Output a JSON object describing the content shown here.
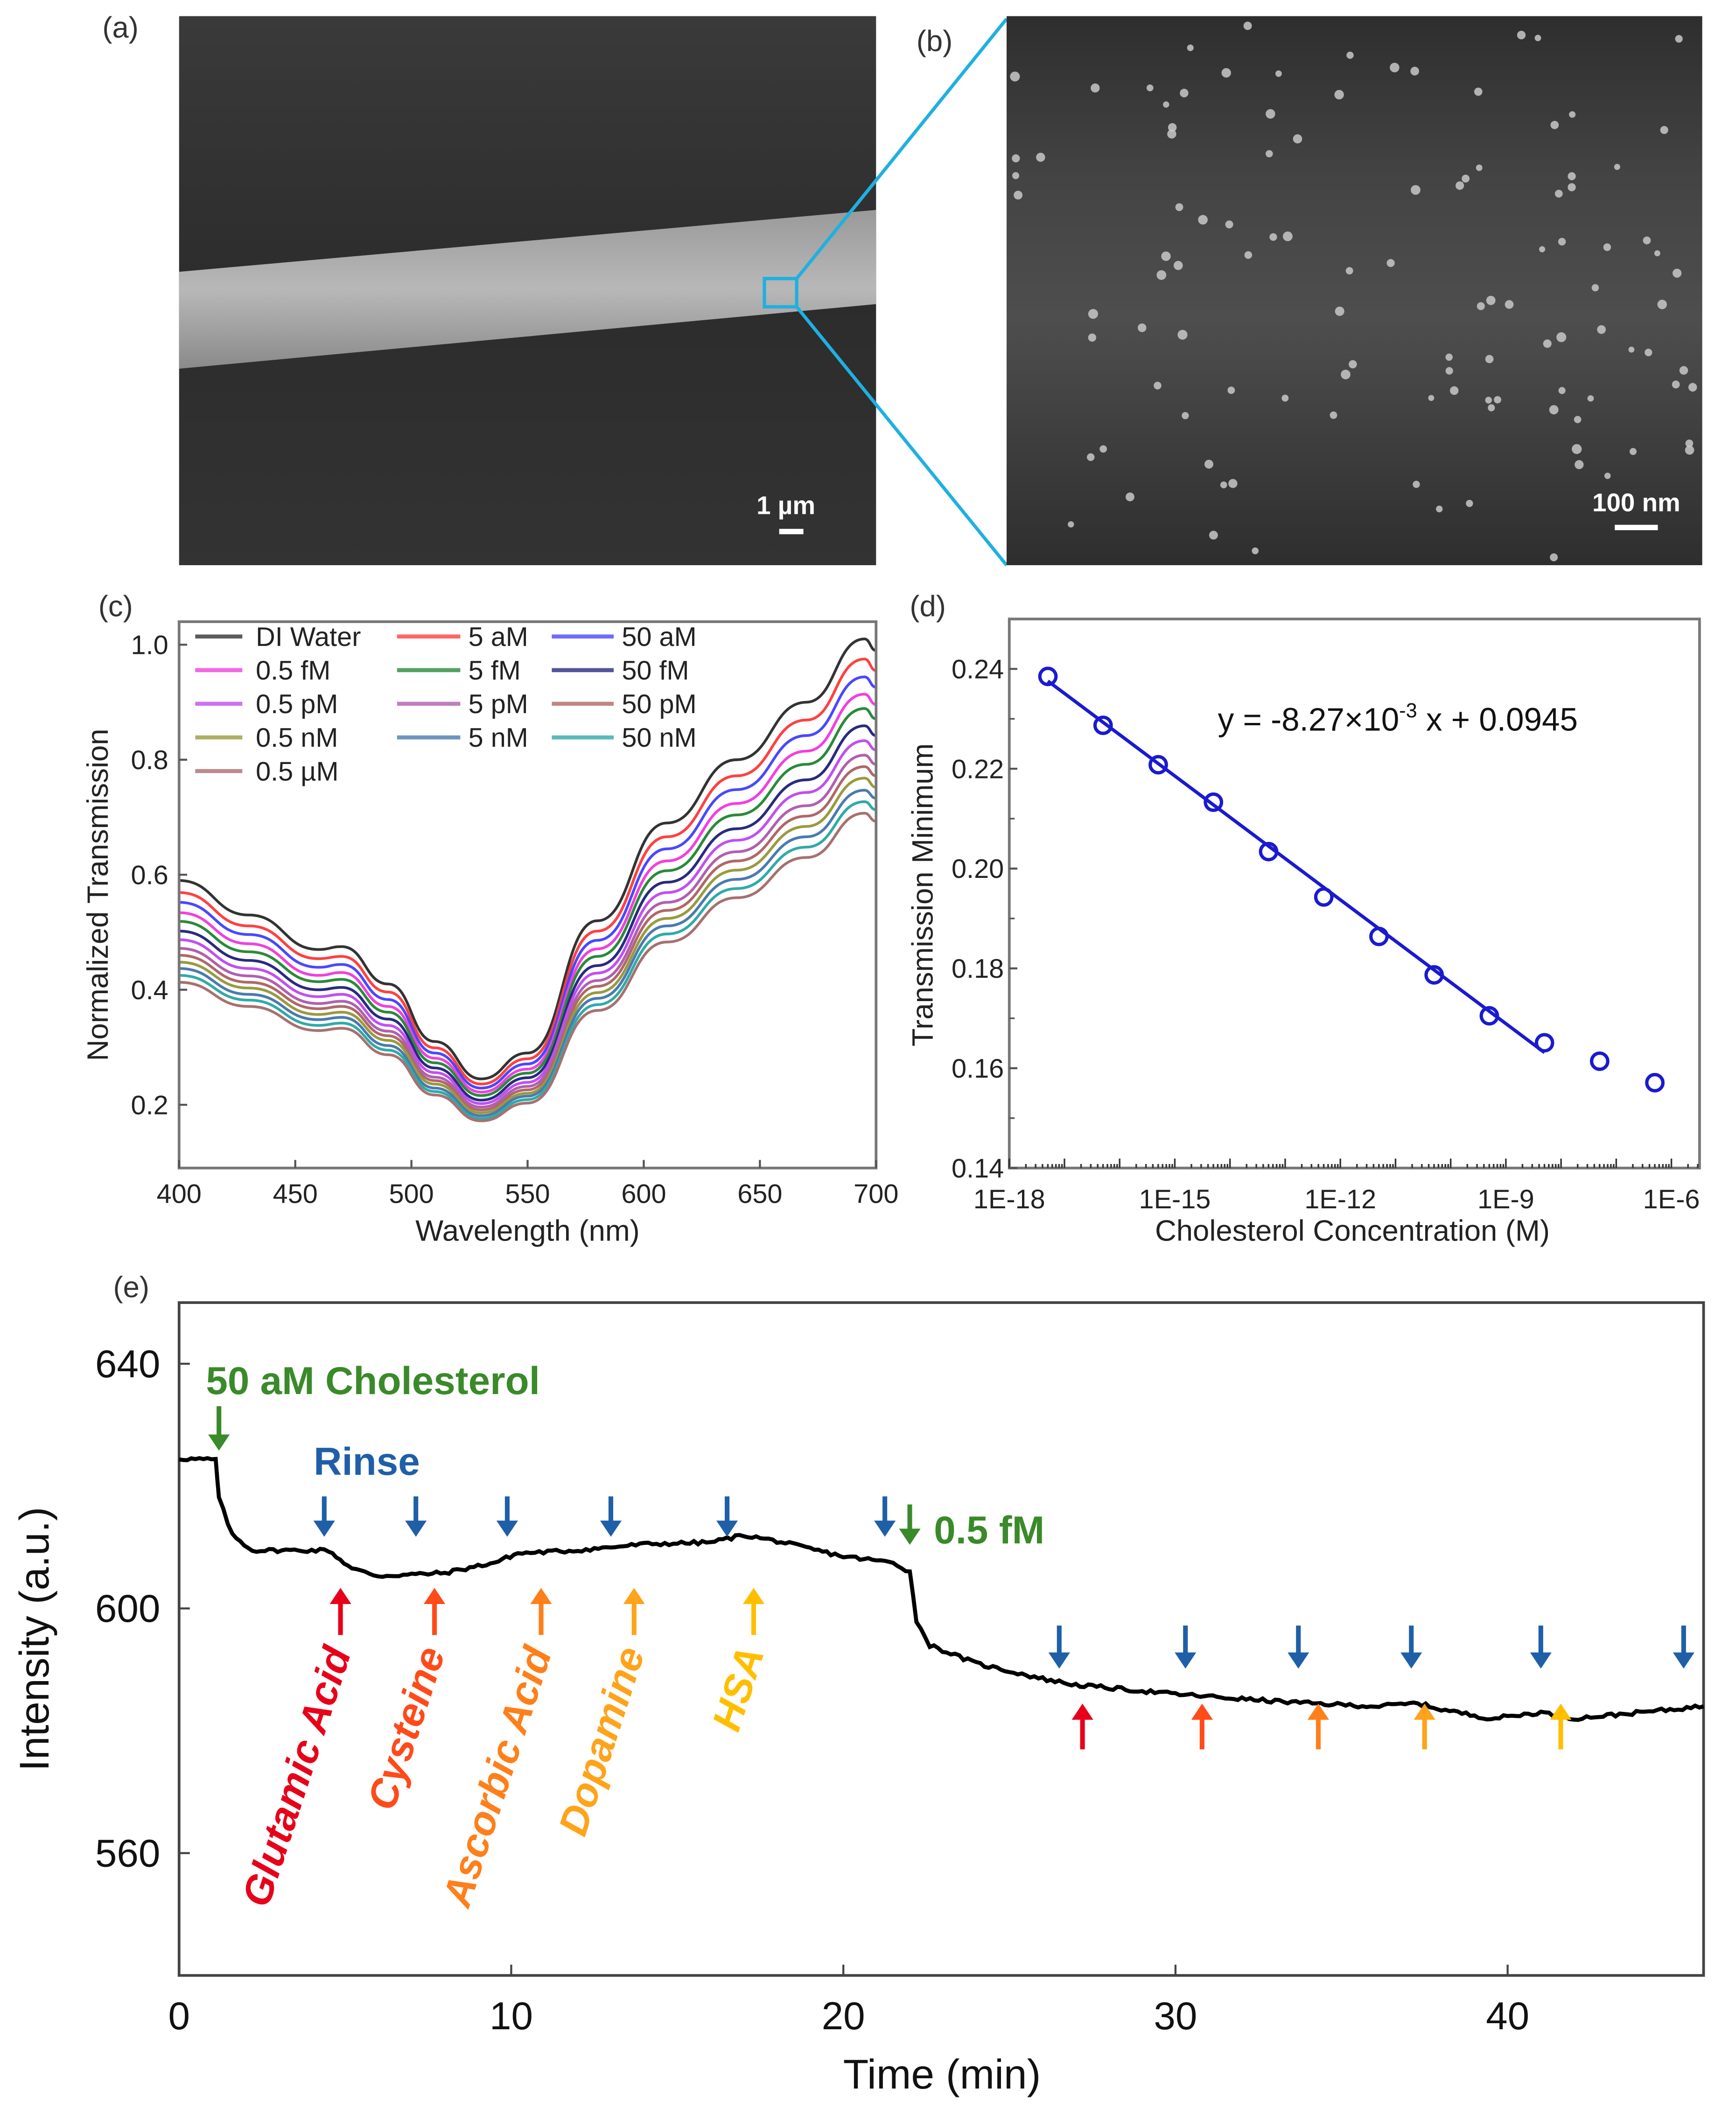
{
  "panels": {
    "a": "(a)",
    "b": "(b)",
    "c": "(c)",
    "d": "(d)",
    "e": "(e)"
  },
  "sem": {
    "a_scale": "1 µm",
    "b_scale": "100 nm"
  },
  "colors": {
    "zoom_box": "#1fb0e0",
    "fit": "#1a1ad0",
    "rinse": "#1f5fa8",
    "cholesterol": "#3a8a2a"
  },
  "chart_data": [
    {
      "type": "line",
      "title": "",
      "xlabel": "Wavelength (nm)",
      "ylabel": "Normalized Transmission",
      "xlim": [
        400,
        700
      ],
      "ylim": [
        0.09,
        1.04
      ],
      "xticks": [
        400,
        450,
        500,
        550,
        600,
        650,
        700
      ],
      "xtick_labels": [
        "400",
        "450",
        "500",
        "550",
        "600",
        "650",
        "700"
      ],
      "yticks": [
        0.2,
        0.4,
        0.6,
        0.8,
        1.0
      ],
      "ytick_labels": [
        "0.2",
        "0.4",
        "0.6",
        "0.8",
        "1.0"
      ],
      "legend": "top-left",
      "x": [
        400,
        430,
        460,
        470,
        490,
        510,
        530,
        550,
        580,
        610,
        640,
        670,
        695,
        700
      ],
      "series": [
        {
          "name": "DI Water",
          "color": "#333333",
          "values": [
            0.59,
            0.53,
            0.47,
            0.475,
            0.41,
            0.31,
            0.245,
            0.29,
            0.52,
            0.69,
            0.8,
            0.9,
            1.01,
            0.99
          ]
        },
        {
          "name": "5 aM",
          "color": "#ff4040",
          "values": [
            0.569,
            0.511,
            0.454,
            0.458,
            0.396,
            0.299,
            0.236,
            0.28,
            0.502,
            0.666,
            0.772,
            0.869,
            0.975,
            0.955
          ]
        },
        {
          "name": "50 aM",
          "color": "#4848ff",
          "values": [
            0.552,
            0.496,
            0.439,
            0.444,
            0.383,
            0.29,
            0.229,
            0.271,
            0.486,
            0.645,
            0.748,
            0.842,
            0.944,
            0.926
          ]
        },
        {
          "name": "0.5 fM",
          "color": "#f040e0",
          "values": [
            0.534,
            0.48,
            0.425,
            0.43,
            0.371,
            0.281,
            0.222,
            0.262,
            0.471,
            0.624,
            0.724,
            0.815,
            0.914,
            0.896
          ]
        },
        {
          "name": "5 fM",
          "color": "#2a8a3a",
          "values": [
            0.519,
            0.466,
            0.414,
            0.418,
            0.361,
            0.273,
            0.216,
            0.255,
            0.458,
            0.607,
            0.704,
            0.792,
            0.889,
            0.871
          ]
        },
        {
          "name": "50 fM",
          "color": "#2a2a80",
          "values": [
            0.502,
            0.451,
            0.4,
            0.404,
            0.349,
            0.264,
            0.208,
            0.247,
            0.442,
            0.587,
            0.68,
            0.765,
            0.859,
            0.842
          ]
        },
        {
          "name": "0.5 pM",
          "color": "#c050f0",
          "values": [
            0.487,
            0.437,
            0.388,
            0.392,
            0.338,
            0.256,
            0.202,
            0.239,
            0.429,
            0.569,
            0.66,
            0.743,
            0.833,
            0.817
          ]
        },
        {
          "name": "5 pM",
          "color": "#b060b0",
          "values": [
            0.472,
            0.424,
            0.376,
            0.38,
            0.328,
            0.248,
            0.196,
            0.232,
            0.416,
            0.552,
            0.64,
            0.72,
            0.808,
            0.792
          ]
        },
        {
          "name": "50 pM",
          "color": "#b06868",
          "values": [
            0.46,
            0.413,
            0.367,
            0.371,
            0.32,
            0.242,
            0.191,
            0.226,
            0.406,
            0.538,
            0.624,
            0.702,
            0.788,
            0.772
          ]
        },
        {
          "name": "0.5 nM",
          "color": "#9a9a40",
          "values": [
            0.448,
            0.403,
            0.357,
            0.361,
            0.312,
            0.236,
            0.186,
            0.22,
            0.395,
            0.524,
            0.608,
            0.684,
            0.768,
            0.752
          ]
        },
        {
          "name": "5 nM",
          "color": "#4a7ab0",
          "values": [
            0.437,
            0.392,
            0.348,
            0.352,
            0.303,
            0.229,
            0.181,
            0.215,
            0.385,
            0.511,
            0.592,
            0.666,
            0.747,
            0.733
          ]
        },
        {
          "name": "50 nM",
          "color": "#30aaa8",
          "values": [
            0.425,
            0.382,
            0.338,
            0.342,
            0.295,
            0.223,
            0.176,
            0.209,
            0.374,
            0.497,
            0.576,
            0.648,
            0.727,
            0.713
          ]
        },
        {
          "name": "0.5 µM",
          "color": "#a87070",
          "values": [
            0.413,
            0.371,
            0.329,
            0.333,
            0.287,
            0.217,
            0.172,
            0.203,
            0.364,
            0.483,
            0.56,
            0.63,
            0.707,
            0.693
          ]
        }
      ]
    },
    {
      "type": "scatter",
      "title": "",
      "xlabel": "Cholesterol Concentration (M)",
      "ylabel": "Transmission Minimum",
      "xscale": "log",
      "xlim_log10": [
        -18,
        -5.49
      ],
      "ylim": [
        0.14,
        0.25
      ],
      "xticks_log10": [
        -18,
        -15,
        -12,
        -9,
        -6
      ],
      "xtick_labels": [
        "1E-18",
        "1E-15",
        "1E-12",
        "1E-9",
        "1E-6"
      ],
      "yticks": [
        0.14,
        0.16,
        0.18,
        0.2,
        0.22,
        0.24
      ],
      "ytick_labels": [
        "0.14",
        "0.16",
        "0.18",
        "0.20",
        "0.22",
        "0.24"
      ],
      "points": {
        "x_log10": [
          -17.3,
          -16.3,
          -15.3,
          -14.3,
          -13.3,
          -12.3,
          -11.3,
          -10.3,
          -9.3,
          -8.3,
          -7.3,
          -6.3
        ],
        "y": [
          0.2385,
          0.2287,
          0.2208,
          0.2133,
          0.2034,
          0.1943,
          0.1864,
          0.1787,
          0.1705,
          0.1651,
          0.1614,
          0.1571
        ]
      },
      "fit": {
        "slope": -0.00827,
        "intercept": 0.0945,
        "x_range_log10": [
          -17.3,
          -8.3
        ],
        "label_main": "y = -8.27",
        "label_times": "×10",
        "label_exp": "-3",
        "label_tail": " x + 0.0945"
      }
    },
    {
      "type": "line",
      "title": "",
      "xlabel": "Time (min)",
      "ylabel": "Intensity (a.u.)",
      "xlim": [
        0,
        45.9
      ],
      "ylim": [
        540,
        650
      ],
      "xticks": [
        0,
        10,
        20,
        30,
        40
      ],
      "xtick_labels": [
        "0",
        "10",
        "20",
        "30",
        "40"
      ],
      "yticks": [
        560,
        600,
        640
      ],
      "ytick_labels": [
        "560",
        "600",
        "640"
      ],
      "trace": {
        "t": [
          0,
          1.1,
          1.2,
          1.6,
          2.2,
          4.5,
          5.2,
          6,
          8,
          9.5,
          10.2,
          12,
          14,
          16,
          17,
          18,
          20,
          21.5,
          22,
          22.2,
          22.6,
          24,
          26,
          27,
          30,
          32,
          34,
          36,
          37.3,
          38,
          39.5,
          41,
          42,
          44,
          45.9
        ],
        "intensity": [
          624.5,
          624.3,
          618,
          612,
          609.5,
          609.5,
          606.5,
          605.3,
          605.8,
          607.5,
          609,
          609.5,
          610.5,
          610.8,
          612,
          611,
          608.5,
          607.5,
          606,
          598,
          594,
          591,
          588.5,
          587.5,
          586,
          585.2,
          584.5,
          584,
          584.5,
          583.5,
          582,
          583,
          582,
          583,
          584
        ]
      },
      "annotations": {
        "cholesterol_label": "50 aM Cholesterol",
        "cholesterol_label_2": "0.5 fM",
        "rinse_label": "Rinse",
        "cholesterol_times": [
          1.2,
          22.0
        ],
        "rinse_times": [
          4.37,
          7.13,
          9.88,
          13.0,
          16.5,
          21.25,
          26.5,
          30.3,
          33.7,
          37.1,
          41.0,
          45.3
        ],
        "interferents": [
          {
            "name": "Glutamic Acid",
            "color": "#e8001a",
            "times": [
              4.86,
              27.2
            ]
          },
          {
            "name": "Cysteine",
            "color": "#ff4a1a",
            "times": [
              7.69,
              30.8
            ]
          },
          {
            "name": "Ascorbic Acid",
            "color": "#ff7f1a",
            "times": [
              10.9,
              34.3
            ]
          },
          {
            "name": "Dopamine",
            "color": "#ffa31a",
            "times": [
              13.7,
              37.5
            ]
          },
          {
            "name": "HSA",
            "color": "#ffbf00",
            "times": [
              17.3,
              41.6
            ]
          }
        ]
      }
    }
  ]
}
